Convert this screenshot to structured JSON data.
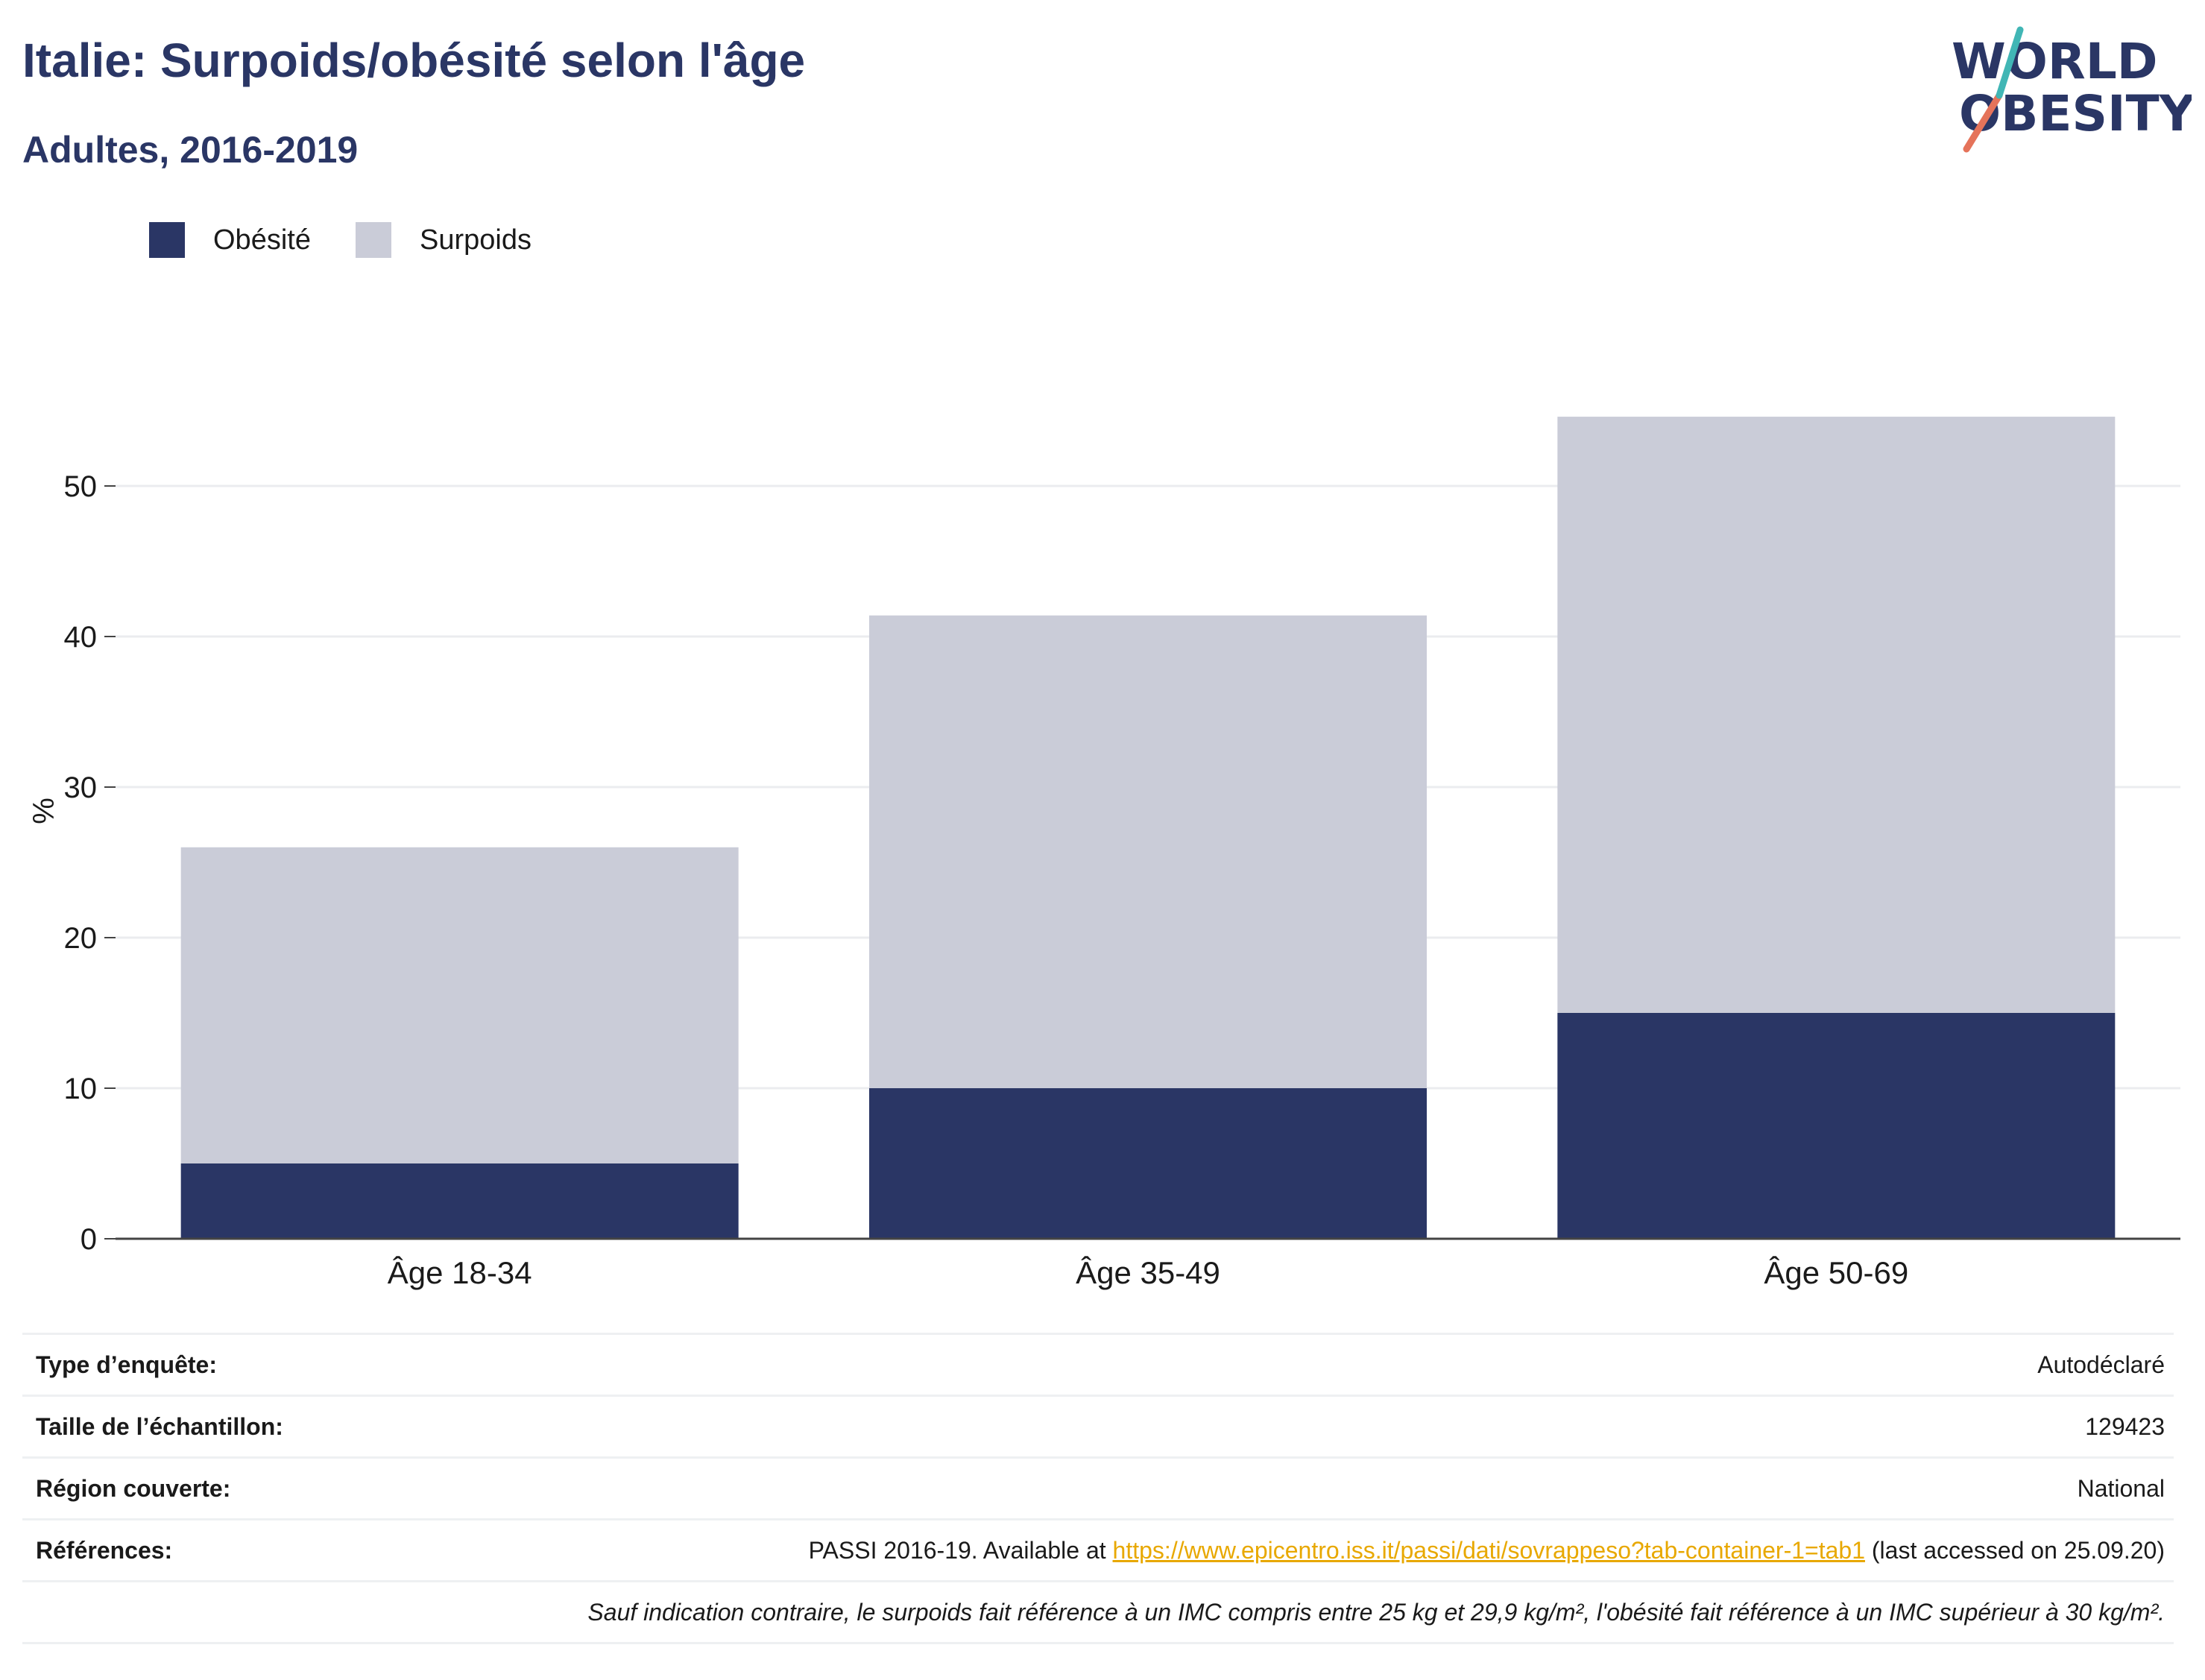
{
  "header": {
    "title": "Italie: Surpoids/obésité selon l'âge",
    "subtitle": "Adultes, 2016-2019"
  },
  "logo": {
    "line1": "WORLD",
    "line2": "OBESITY"
  },
  "colors": {
    "obesity": "#2a3665",
    "overweight": "#caccd8",
    "accent_orange": "#e5735a",
    "accent_teal": "#41b6b5",
    "link": "#e8a800"
  },
  "chart_data": {
    "type": "bar",
    "stacked": true,
    "categories": [
      "Âge 18-34",
      "Âge 35-49",
      "Âge 50-69"
    ],
    "series": [
      {
        "name": "Obésité",
        "values": [
          5.0,
          10.0,
          15.0
        ]
      },
      {
        "name": "Surpoids",
        "values": [
          21.0,
          31.4,
          39.6
        ]
      }
    ],
    "ylabel": "%",
    "ylim": [
      0,
      55
    ],
    "yticks": [
      0,
      10,
      20,
      30,
      40,
      50
    ],
    "grid": true,
    "legend": "top-left"
  },
  "info": {
    "rows": [
      {
        "key": "Type d’enquête:",
        "value": "Autodéclaré"
      },
      {
        "key": "Taille de l’échantillon:",
        "value": "129423"
      },
      {
        "key": "Région couverte:",
        "value": "National"
      }
    ],
    "references": {
      "key": "Références:",
      "prefix": "PASSI 2016-19. Available at ",
      "link": "https://www.epicentro.iss.it/passi/dati/sovrappeso?tab-container-1=tab1",
      "suffix": " (last accessed on 25.09.20)"
    },
    "note": "Sauf indication contraire, le surpoids fait référence à un IMC compris entre 25 kg et 29,9 kg/m², l'obésité fait référence à un IMC supérieur à 30 kg/m²."
  }
}
